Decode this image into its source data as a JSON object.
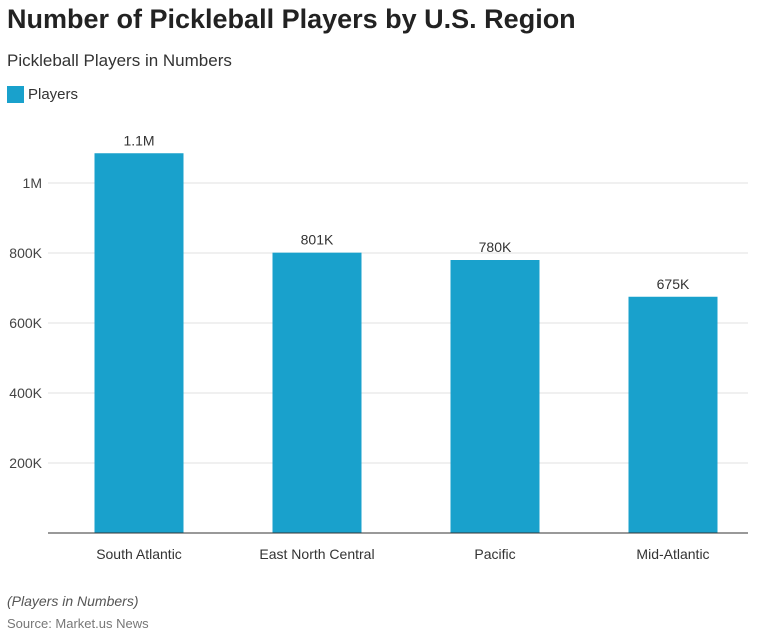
{
  "chart_data": {
    "type": "bar",
    "title": "Number of Pickleball Players by U.S. Region",
    "subtitle": "Pickleball Players in Numbers",
    "categories": [
      "South Atlantic",
      "East North Central",
      "Pacific",
      "Mid-Atlantic"
    ],
    "series": [
      {
        "name": "Players",
        "values": [
          1085000,
          801000,
          780000,
          675000
        ],
        "labels": [
          "1.1M",
          "801K",
          "780K",
          "675K"
        ]
      }
    ],
    "ylim": [
      0,
      1100000
    ],
    "yticks": [
      200000,
      400000,
      600000,
      800000,
      1000000
    ],
    "ytick_labels": [
      "200K",
      "400K",
      "600K",
      "800K",
      "1M"
    ],
    "grid": true,
    "legend_position": "top-left",
    "colors": {
      "bar": "#19a1cc"
    },
    "note": "(Players in Numbers)",
    "source": "Source: Market.us News"
  }
}
